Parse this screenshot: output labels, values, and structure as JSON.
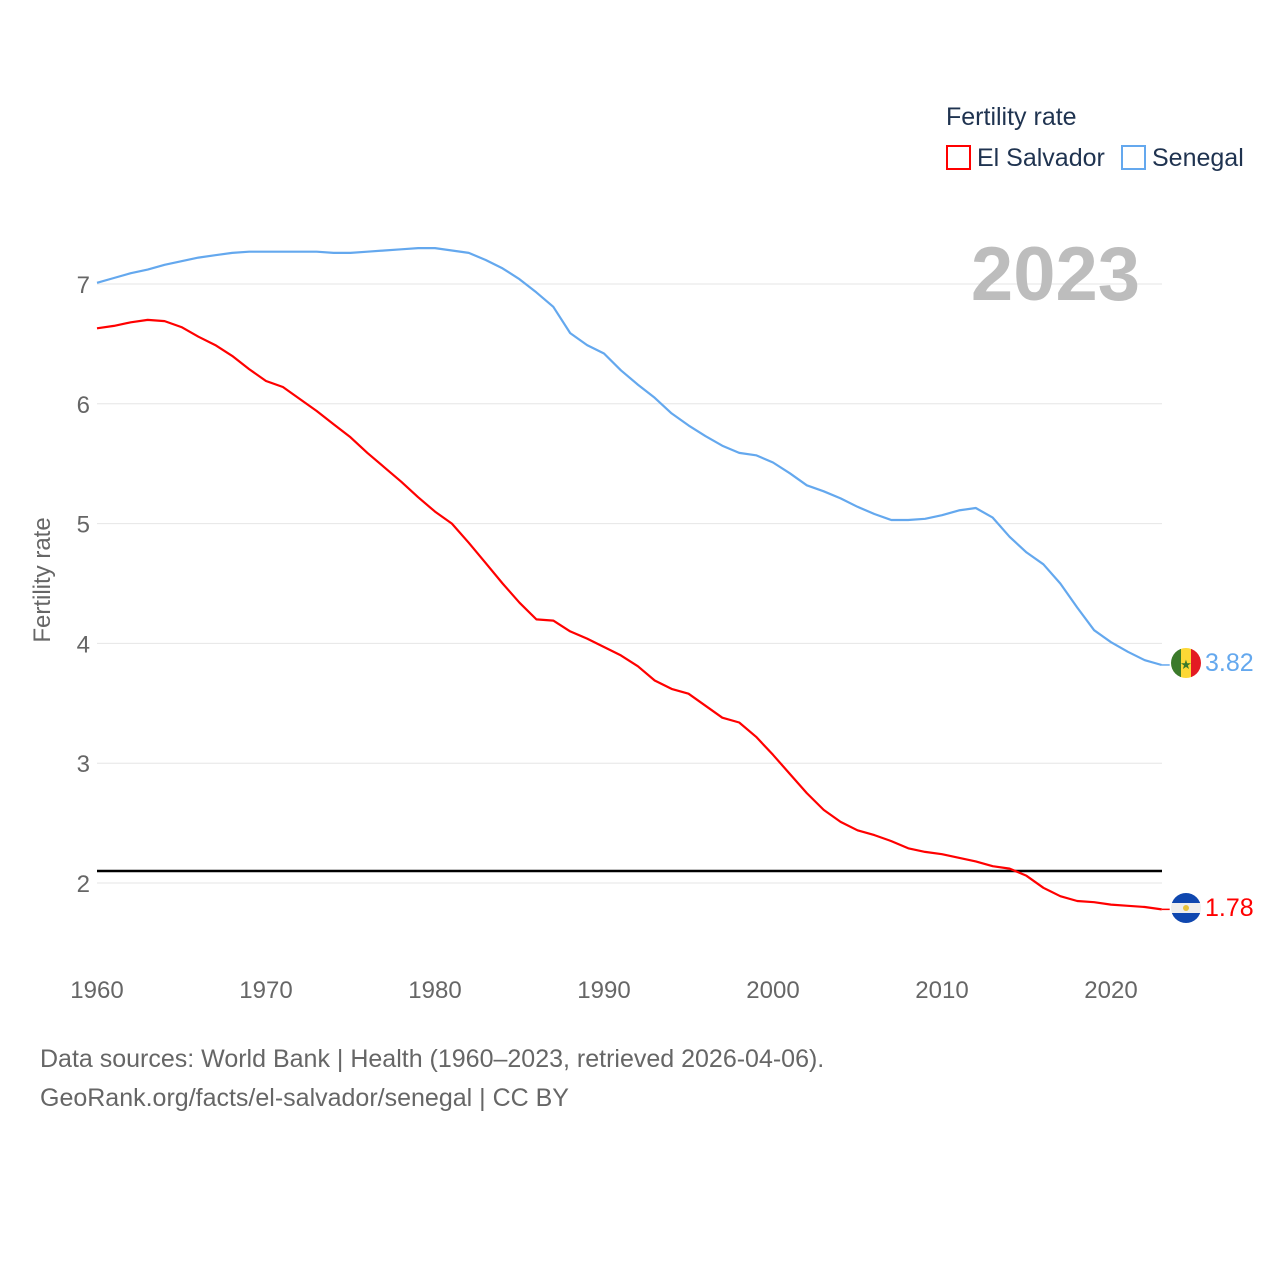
{
  "chart_data": {
    "type": "line",
    "ylabel": "Fertility rate",
    "xlabel": "",
    "legend_title": "Fertility rate",
    "legend_position": "top-right",
    "year_label": "2023",
    "ylim": [
      1.5,
      7.5
    ],
    "xlim": [
      1960,
      2023
    ],
    "yticks": [
      "2",
      "3",
      "4",
      "5",
      "6",
      "7"
    ],
    "xticks": [
      "1960",
      "1970",
      "1980",
      "1990",
      "2000",
      "2010",
      "2020"
    ],
    "grid": true,
    "reference_line": 2.1,
    "x_start": 1960,
    "series": [
      {
        "name": "El Salvador",
        "color": "#ff0000",
        "end_label": "1.78",
        "values": [
          6.63,
          6.65,
          6.68,
          6.7,
          6.69,
          6.64,
          6.56,
          6.49,
          6.4,
          6.29,
          6.19,
          6.14,
          6.04,
          5.94,
          5.83,
          5.72,
          5.59,
          5.47,
          5.35,
          5.22,
          5.1,
          5.0,
          4.84,
          4.67,
          4.5,
          4.34,
          4.2,
          4.19,
          4.1,
          4.04,
          3.97,
          3.9,
          3.81,
          3.69,
          3.62,
          3.58,
          3.48,
          3.38,
          3.34,
          3.22,
          3.07,
          2.91,
          2.75,
          2.61,
          2.51,
          2.44,
          2.4,
          2.35,
          2.29,
          2.26,
          2.24,
          2.21,
          2.18,
          2.14,
          2.12,
          2.06,
          1.96,
          1.89,
          1.85,
          1.84,
          1.82,
          1.81,
          1.8,
          1.78
        ]
      },
      {
        "name": "Senegal",
        "color": "#64a8ee",
        "end_label": "3.82",
        "values": [
          7.01,
          7.05,
          7.09,
          7.12,
          7.16,
          7.19,
          7.22,
          7.24,
          7.26,
          7.27,
          7.27,
          7.27,
          7.27,
          7.27,
          7.26,
          7.26,
          7.27,
          7.28,
          7.29,
          7.3,
          7.3,
          7.28,
          7.26,
          7.2,
          7.13,
          7.04,
          6.93,
          6.81,
          6.59,
          6.49,
          6.42,
          6.28,
          6.16,
          6.05,
          5.92,
          5.82,
          5.73,
          5.65,
          5.59,
          5.57,
          5.51,
          5.42,
          5.32,
          5.27,
          5.21,
          5.14,
          5.08,
          5.03,
          5.03,
          5.04,
          5.07,
          5.11,
          5.13,
          5.05,
          4.89,
          4.76,
          4.66,
          4.5,
          4.3,
          4.11,
          4.01,
          3.93,
          3.86,
          3.82
        ]
      }
    ]
  },
  "footer": {
    "line1": "Data sources: World Bank | Health (1960–2023, retrieved 2026-04-06).",
    "line2": "GeoRank.org/facts/el-salvador/senegal | CC BY"
  }
}
